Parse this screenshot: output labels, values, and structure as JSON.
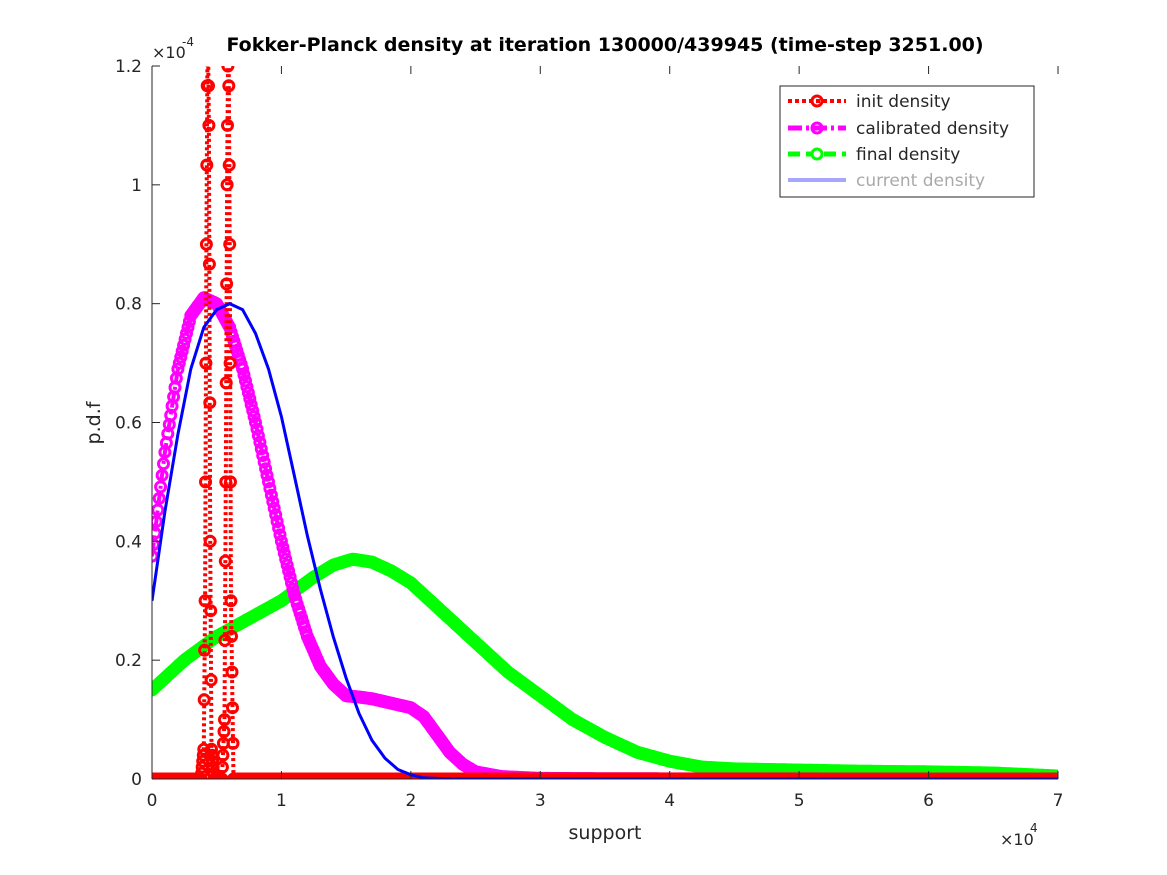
{
  "chart_data": {
    "type": "line",
    "title": "Fokker-Planck density at iteration 130000/439945 (time-step 3251.00)",
    "xlabel": "support",
    "ylabel": "p.d.f",
    "x_exponent_label": "×10",
    "x_exponent_power": "4",
    "y_exponent_label": "×10",
    "y_exponent_power": "-4",
    "xlim": [
      0,
      70000
    ],
    "ylim": [
      0,
      0.00012
    ],
    "x_ticks": [
      0,
      10000,
      20000,
      30000,
      40000,
      50000,
      60000,
      70000
    ],
    "x_tick_labels": [
      "0",
      "1",
      "2",
      "3",
      "4",
      "5",
      "6",
      "7"
    ],
    "y_ticks": [
      0,
      2e-05,
      4e-05,
      6e-05,
      8e-05,
      0.0001,
      0.00012
    ],
    "y_tick_labels": [
      "0",
      "0.2",
      "0.4",
      "0.6",
      "0.8",
      "1",
      "1.2"
    ],
    "grid": false,
    "legend_placement": "top-right",
    "series": [
      {
        "name": "init density",
        "color": "#ff0000",
        "style": "dotted-circle",
        "x": [
          0,
          3800,
          4000,
          4100,
          4200,
          4300,
          4400,
          4500,
          4600,
          4800,
          5000,
          5400,
          5600,
          5700,
          5800,
          5900,
          6000,
          6100,
          6300,
          7000,
          20000,
          40000,
          70000
        ],
        "y": [
          0,
          0,
          5e-06,
          3e-05,
          9e-05,
          0.00013,
          0.00011,
          4e-05,
          5e-06,
          0,
          0,
          0,
          1e-05,
          5e-05,
          0.0001,
          0.00013,
          9e-05,
          3e-05,
          0,
          0,
          0,
          0,
          0
        ]
      },
      {
        "name": "calibrated density",
        "color": "#ff00ff",
        "style": "dashdot-circle",
        "x": [
          0,
          1000,
          2000,
          3000,
          4000,
          5000,
          6000,
          7000,
          8000,
          9000,
          10000,
          11000,
          12000,
          13000,
          14000,
          15000,
          16000,
          17000,
          18000,
          19000,
          20000,
          21000,
          22000,
          23000,
          24000,
          25000,
          27000,
          30000,
          35000,
          40000,
          50000,
          60000,
          70000
        ],
        "y": [
          3.75e-05,
          5.5e-05,
          6.9e-05,
          7.8e-05,
          8.1e-05,
          8e-05,
          7.6e-05,
          6.9e-05,
          6e-05,
          5e-05,
          4e-05,
          3.1e-05,
          2.4e-05,
          1.9e-05,
          1.6e-05,
          1.4e-05,
          1.38e-05,
          1.35e-05,
          1.3e-05,
          1.25e-05,
          1.2e-05,
          1.05e-05,
          7.5e-06,
          4.5e-06,
          2.5e-06,
          1.2e-06,
          4e-07,
          1e-07,
          5e-08,
          2e-08,
          1e-08,
          0,
          0
        ]
      },
      {
        "name": "final density",
        "color": "#00ff00",
        "style": "dashed-circle",
        "x": [
          0,
          2500,
          5000,
          7500,
          10000,
          12500,
          14000,
          15500,
          17000,
          18500,
          20000,
          22500,
          25000,
          27500,
          30000,
          32500,
          35000,
          37500,
          40000,
          42500,
          45000,
          50000,
          55000,
          60000,
          65000,
          70000
        ],
        "y": [
          1.5e-05,
          2e-05,
          2.4e-05,
          2.7e-05,
          3e-05,
          3.4e-05,
          3.6e-05,
          3.7e-05,
          3.65e-05,
          3.5e-05,
          3.3e-05,
          2.8e-05,
          2.3e-05,
          1.8e-05,
          1.4e-05,
          1e-05,
          7e-06,
          4.5e-06,
          3e-06,
          2e-06,
          1.7e-06,
          1.5e-06,
          1.3e-06,
          1.2e-06,
          1e-06,
          5e-07
        ]
      },
      {
        "name": "current density",
        "color": "#0000ff",
        "style": "solid",
        "x": [
          0,
          1000,
          2000,
          3000,
          4000,
          5000,
          6000,
          7000,
          8000,
          9000,
          10000,
          11000,
          12000,
          13000,
          14000,
          15000,
          16000,
          17000,
          18000,
          19000,
          20000,
          21000,
          22000,
          23000,
          25000,
          30000,
          40000,
          50000,
          60000,
          70000
        ],
        "y": [
          3e-05,
          4.5e-05,
          5.8e-05,
          6.9e-05,
          7.6e-05,
          7.9e-05,
          8e-05,
          7.9e-05,
          7.5e-05,
          6.9e-05,
          6.1e-05,
          5.1e-05,
          4.1e-05,
          3.2e-05,
          2.4e-05,
          1.7e-05,
          1.1e-05,
          6.5e-06,
          3.5e-06,
          1.6e-06,
          7e-07,
          2e-07,
          1e-07,
          0,
          0,
          0,
          0,
          0,
          0,
          0
        ]
      }
    ]
  }
}
